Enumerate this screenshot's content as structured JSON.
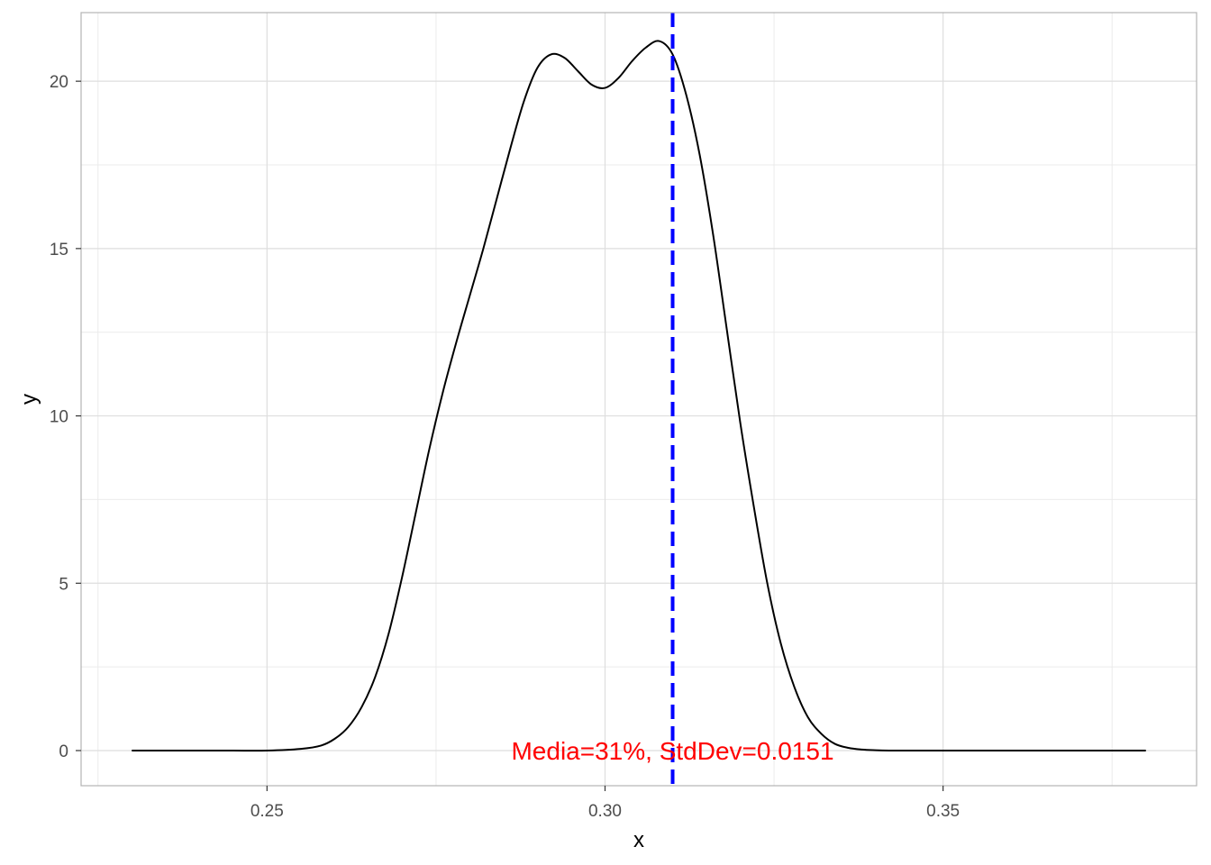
{
  "chart_data": {
    "type": "line",
    "xlabel": "x",
    "ylabel": "y",
    "xlim": [
      0.2225,
      0.3875
    ],
    "ylim": [
      -1.05,
      22.05
    ],
    "x_ticks": [
      0.25,
      0.3,
      0.35
    ],
    "x_tick_labels": [
      "0.25",
      "0.30",
      "0.35"
    ],
    "y_ticks": [
      0,
      5,
      10,
      15,
      20
    ],
    "y_tick_labels": [
      "0",
      "5",
      "10",
      "15",
      "20"
    ],
    "x_minor_ticks": [
      0.225,
      0.275,
      0.325,
      0.375
    ],
    "y_minor_ticks": [
      2.5,
      7.5,
      12.5,
      17.5
    ],
    "grid": true,
    "panel_border": true,
    "series": [
      {
        "color": "#000000",
        "x": [
          0.23,
          0.235,
          0.24,
          0.245,
          0.25,
          0.255,
          0.258,
          0.26,
          0.262,
          0.264,
          0.266,
          0.268,
          0.27,
          0.272,
          0.274,
          0.276,
          0.278,
          0.28,
          0.282,
          0.284,
          0.286,
          0.288,
          0.29,
          0.292,
          0.294,
          0.296,
          0.298,
          0.3,
          0.302,
          0.304,
          0.306,
          0.308,
          0.31,
          0.312,
          0.314,
          0.316,
          0.318,
          0.32,
          0.322,
          0.324,
          0.326,
          0.328,
          0.33,
          0.332,
          0.334,
          0.336,
          0.338,
          0.34,
          0.342,
          0.344,
          0.346,
          0.348,
          0.35,
          0.355,
          0.36,
          0.365,
          0.37,
          0.375,
          0.38
        ],
        "y": [
          0.0,
          0.0,
          0.0,
          0.0,
          0.0,
          0.05,
          0.15,
          0.35,
          0.7,
          1.3,
          2.2,
          3.5,
          5.2,
          7.1,
          9.0,
          10.7,
          12.2,
          13.6,
          15.0,
          16.5,
          18.0,
          19.4,
          20.4,
          20.8,
          20.7,
          20.3,
          19.9,
          19.8,
          20.1,
          20.6,
          21.0,
          21.2,
          20.8,
          19.6,
          17.8,
          15.4,
          12.6,
          9.8,
          7.3,
          5.0,
          3.2,
          1.9,
          1.0,
          0.5,
          0.2,
          0.08,
          0.03,
          0.01,
          0.0,
          0.0,
          0.0,
          0.0,
          0.0,
          0.0,
          0.0,
          0.0,
          0.0,
          0.0,
          0.0
        ]
      }
    ],
    "reference_line": {
      "orientation": "vertical",
      "x": 0.31,
      "color": "#0000ff",
      "style": "dashed"
    },
    "annotation": {
      "text": "Media=31%, StdDev=0.0151",
      "x": 0.31,
      "y": 0,
      "color": "#ff0000"
    }
  }
}
